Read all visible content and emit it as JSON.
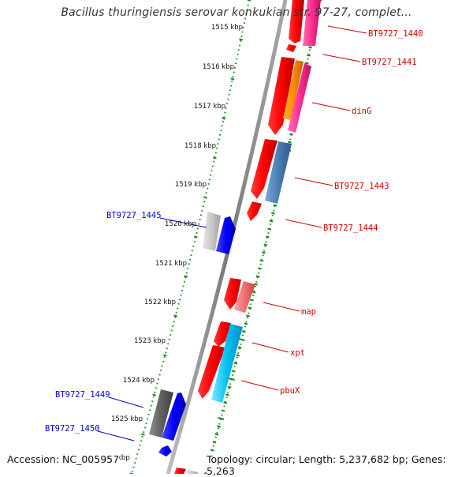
{
  "header": {
    "title": "Bacillus thuringiensis serovar konkukian str. 97-27, complet..."
  },
  "footer": {
    "accession": "Accession: NC_005957",
    "topology": "Topology: circular; Length: 5,237,682 bp; Genes: 5,263"
  },
  "colors": {
    "backbone": "#888888",
    "forward_red": "#ff1010",
    "ticks": "#1a8a1a",
    "label_red": "#cc0000",
    "label_blue": "#0000cc"
  },
  "scale": {
    "unit": "kbp",
    "positions": [
      1515,
      1516,
      1517,
      1518,
      1519,
      1520,
      1521,
      1522,
      1523,
      1524,
      1525,
      1526
    ],
    "labels": [
      "1515 kbp",
      "1516 kbp",
      "1517 kbp",
      "1518 kbp",
      "1519 kbp",
      "1520 kbp",
      "1521 kbp",
      "1522 kbp",
      "1523 kbp",
      "1524 kbp",
      "1525 kbp",
      "kbp"
    ]
  },
  "genes": [
    {
      "label": "BT9727_1440",
      "strand": "+",
      "color": "red"
    },
    {
      "label": "BT9727_1441",
      "strand": "+",
      "color": "red"
    },
    {
      "label": "dinG",
      "strand": "+",
      "color": "red"
    },
    {
      "label": "BT9727_1443",
      "strand": "+",
      "color": "red"
    },
    {
      "label": "BT9727_1444",
      "strand": "+",
      "color": "red"
    },
    {
      "label": "BT9727_1445",
      "strand": "-",
      "color": "blue"
    },
    {
      "label": "map",
      "strand": "+",
      "color": "red"
    },
    {
      "label": "xpt",
      "strand": "+",
      "color": "red"
    },
    {
      "label": "pbuX",
      "strand": "+",
      "color": "red"
    },
    {
      "label": "BT9727_1449",
      "strand": "-",
      "color": "blue"
    },
    {
      "label": "BT9727_1450",
      "strand": "-",
      "color": "blue"
    }
  ]
}
